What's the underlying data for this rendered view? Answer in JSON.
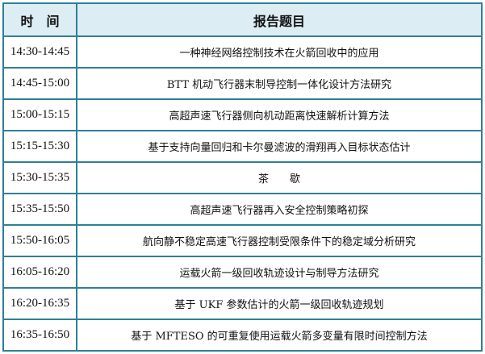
{
  "header": {
    "time": "时　间",
    "title": "报告题目"
  },
  "rows": [
    {
      "time": "14:30-14:45",
      "title": "一种神经网络控制技术在火箭回收中的应用"
    },
    {
      "time": "14:45-15:00",
      "title": "BTT 机动飞行器末制导控制一体化设计方法研究"
    },
    {
      "time": "15:00-15:15",
      "title": "高超声速飞行器侧向机动距离快速解析计算方法"
    },
    {
      "time": "15:15-15:30",
      "title": "基于支持向量回归和卡尔曼滤波的滑翔再入目标状态估计"
    },
    {
      "time": "15:30-15:35",
      "title": "茶　　歇"
    },
    {
      "time": "15:35-15:50",
      "title": "高超声速飞行器再入安全控制策略初探"
    },
    {
      "time": "15:50-16:05",
      "title": "航向静不稳定高速飞行器控制受限条件下的稳定域分析研究"
    },
    {
      "time": "16:05-16:20",
      "title": "运载火箭一级回收轨迹设计与制导方法研究"
    },
    {
      "time": "16:20-16:35",
      "title": "基于 UKF 参数估计的火箭一级回收轨迹规划"
    },
    {
      "time": "16:35-16:50",
      "title": "基于 MFTESO 的可重复使用运载火箭多变量有限时间控制方法"
    }
  ]
}
